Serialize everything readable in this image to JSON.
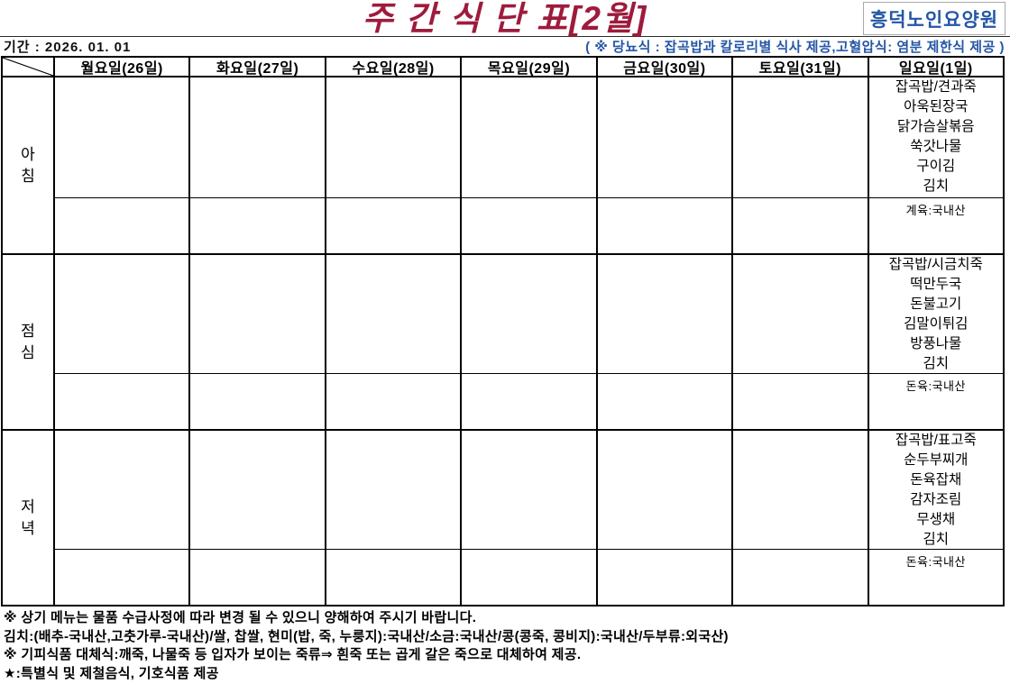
{
  "title": "주 간 식 단 표[2월]",
  "facility_name": "흥덕노인요양원",
  "period": "기간 : 2026. 01. 01",
  "diet_note": "( ※ 당뇨식 : 잡곡밥과 칼로리별 식사 제공,고혈압식: 염분 제한식 제공 )",
  "colors": {
    "title": "#9E1B3C",
    "accent_blue": "#2456A6",
    "border": "#000000"
  },
  "table": {
    "day_headers": [
      "월요일(26일)",
      "화요일(27일)",
      "수요일(28일)",
      "목요일(29일)",
      "금요일(30일)",
      "토요일(31일)",
      "일요일(1일)"
    ],
    "meals": [
      {
        "label": "아침",
        "menus": [
          [],
          [],
          [],
          [],
          [],
          [],
          [
            "잡곡밥/견과죽",
            "아욱된장국",
            "닭가슴살볶음",
            "쑥갓나물",
            "구이김",
            "김치"
          ]
        ],
        "origins": [
          "",
          "",
          "",
          "",
          "",
          "",
          "계육:국내산"
        ]
      },
      {
        "label": "점심",
        "menus": [
          [],
          [],
          [],
          [],
          [],
          [],
          [
            "잡곡밥/시금치죽",
            "떡만두국",
            "돈불고기",
            "김말이튀김",
            "방풍나물",
            "김치"
          ]
        ],
        "origins": [
          "",
          "",
          "",
          "",
          "",
          "",
          "돈육:국내산"
        ]
      },
      {
        "label": "저녁",
        "menus": [
          [],
          [],
          [],
          [],
          [],
          [],
          [
            "잡곡밥/표고죽",
            "순두부찌개",
            "돈육잡채",
            "감자조림",
            "무생채",
            "김치"
          ]
        ],
        "origins": [
          "",
          "",
          "",
          "",
          "",
          "",
          "돈육:국내산"
        ]
      }
    ]
  },
  "footer_notes": [
    "※ 상기 메뉴는 물품 수급사정에 따라 변경 될 수 있으니 양해하여 주시기 바랍니다.",
    "김치:(배추-국내산,고춧가루-국내산)/쌀, 찹쌀, 현미(밥, 죽, 누룽지):국내산/소금:국내산/콩(콩죽, 콩비지):국내산/두부류:외국산)",
    "※ 기피식품 대체식:깨죽, 나물죽 등 입자가 보이는 죽류⇒ 흰죽 또는 곱게 갈은 죽으로 대체하여 제공.",
    "★:특별식 및 제철음식, 기호식품 제공"
  ]
}
